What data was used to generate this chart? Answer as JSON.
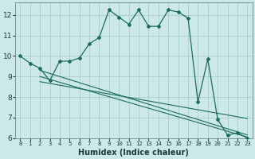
{
  "xlabel": "Humidex (Indice chaleur)",
  "background_color": "#cce8e8",
  "grid_color": "#aacccc",
  "line_color": "#1a6b60",
  "xlim": [
    -0.5,
    23.5
  ],
  "ylim": [
    6.0,
    12.6
  ],
  "xticks": [
    0,
    1,
    2,
    3,
    4,
    5,
    6,
    7,
    8,
    9,
    10,
    11,
    12,
    13,
    14,
    15,
    16,
    17,
    18,
    19,
    20,
    21,
    22,
    23
  ],
  "yticks": [
    6,
    7,
    8,
    9,
    10,
    11,
    12
  ],
  "line1_x": [
    0,
    1,
    2,
    3,
    4,
    5,
    6,
    7,
    8,
    9,
    10,
    11,
    12,
    13,
    14,
    15,
    16,
    17,
    18,
    19,
    20,
    21,
    22,
    23
  ],
  "line1_y": [
    10.0,
    9.65,
    9.4,
    8.8,
    9.75,
    9.75,
    9.9,
    10.6,
    10.9,
    12.25,
    11.9,
    11.55,
    12.25,
    11.45,
    11.45,
    12.25,
    12.15,
    11.85,
    7.75,
    9.85,
    6.9,
    6.15,
    6.25,
    6.0
  ],
  "line2_x": [
    2,
    23
  ],
  "line2_y": [
    9.3,
    6.15
  ],
  "line3_x": [
    2,
    23
  ],
  "line3_y": [
    9.0,
    6.05
  ],
  "line4_x": [
    2,
    23
  ],
  "line4_y": [
    8.75,
    6.95
  ]
}
